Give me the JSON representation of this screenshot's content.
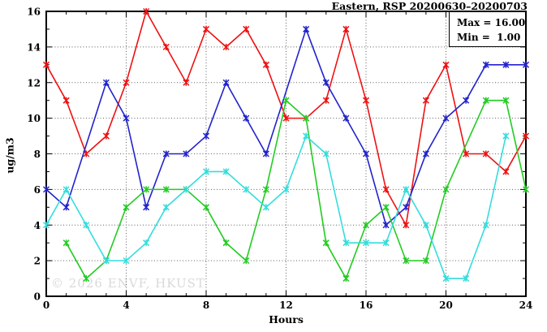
{
  "watermark": "© 2026 ENVF, HKUST",
  "chart_data": {
    "type": "line",
    "title": "Eastern, RSP 20200630–20200703",
    "xlabel": "Hours",
    "ylabel": "ug/m3",
    "xlim": [
      0,
      24
    ],
    "ylim": [
      0,
      16
    ],
    "x_major_ticks": [
      0,
      4,
      8,
      12,
      16,
      20,
      24
    ],
    "y_major_ticks": [
      0,
      2,
      4,
      6,
      8,
      10,
      12,
      14,
      16
    ],
    "grid": true,
    "legend_position": "top-right",
    "annotations": [
      "Max = 16.00",
      "Min =  1.00"
    ],
    "stats": {
      "max": 16.0,
      "min": 1.0
    },
    "x": [
      0,
      1,
      2,
      3,
      4,
      5,
      6,
      7,
      8,
      9,
      10,
      11,
      12,
      13,
      14,
      15,
      16,
      17,
      18,
      19,
      20,
      21,
      22,
      23,
      24
    ],
    "series": [
      {
        "name": "series-red",
        "color": "#ee1111",
        "values": [
          13,
          11,
          8,
          9,
          12,
          16,
          14,
          12,
          15,
          14,
          15,
          13,
          10,
          10,
          11,
          15,
          11,
          6,
          4,
          11,
          13,
          8,
          8,
          7,
          9
        ]
      },
      {
        "name": "series-blue",
        "color": "#2222cc",
        "values": [
          6,
          5,
          null,
          12,
          10,
          5,
          8,
          8,
          9,
          12,
          10,
          8,
          null,
          15,
          12,
          10,
          8,
          4,
          5,
          8,
          10,
          11,
          13,
          13,
          13
        ]
      },
      {
        "name": "series-green",
        "color": "#22cc22",
        "values": [
          null,
          3,
          1,
          2,
          5,
          6,
          6,
          6,
          5,
          3,
          2,
          6,
          11,
          10,
          3,
          1,
          4,
          5,
          2,
          2,
          6,
          null,
          11,
          11,
          6
        ]
      },
      {
        "name": "series-cyan",
        "color": "#33dddd",
        "values": [
          4,
          6,
          4,
          2,
          2,
          3,
          5,
          6,
          7,
          7,
          6,
          5,
          6,
          9,
          8,
          3,
          3,
          3,
          6,
          4,
          1,
          1,
          4,
          9,
          null
        ]
      }
    ]
  }
}
